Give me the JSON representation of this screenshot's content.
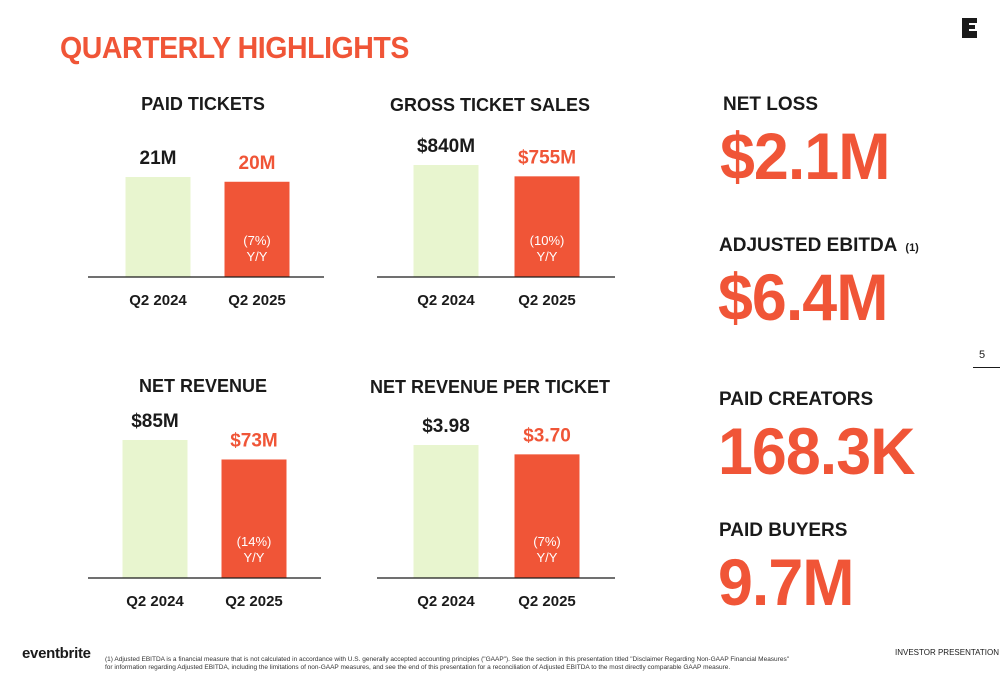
{
  "page_title": "QUARTERLY HIGHLIGHTS",
  "colors": {
    "accent": "#f05537",
    "bar_prior": "#e8f5cf",
    "bar_current": "#f05537",
    "text_dark": "#1a1a1a"
  },
  "chart_data": [
    {
      "type": "bar",
      "title": "PAID TICKETS",
      "categories": [
        "Q2 2024",
        "Q2 2025"
      ],
      "values": [
        21,
        20
      ],
      "value_labels": [
        "21M",
        "20M"
      ],
      "change_label": [
        "(7%)",
        "Y/Y"
      ],
      "unit": "M"
    },
    {
      "type": "bar",
      "title": "GROSS TICKET SALES",
      "categories": [
        "Q2 2024",
        "Q2 2025"
      ],
      "values": [
        840,
        755
      ],
      "value_labels": [
        "$840M",
        "$755M"
      ],
      "change_label": [
        "(10%)",
        "Y/Y"
      ],
      "unit": "$M"
    },
    {
      "type": "bar",
      "title": "NET REVENUE",
      "categories": [
        "Q2 2024",
        "Q2 2025"
      ],
      "values": [
        85,
        73
      ],
      "value_labels": [
        "$85M",
        "$73M"
      ],
      "change_label": [
        "(14%)",
        "Y/Y"
      ],
      "unit": "$M"
    },
    {
      "type": "bar",
      "title": "NET REVENUE PER TICKET",
      "categories": [
        "Q2 2024",
        "Q2 2025"
      ],
      "values": [
        3.98,
        3.7
      ],
      "value_labels": [
        "$3.98",
        "$3.70"
      ],
      "change_label": [
        "(7%)",
        "Y/Y"
      ],
      "unit": "$"
    }
  ],
  "metrics": [
    {
      "label": "NET LOSS",
      "value": "$2.1M",
      "footnote_ref": ""
    },
    {
      "label": "ADJUSTED EBITDA",
      "value": "$6.4M",
      "footnote_ref": "(1)"
    },
    {
      "label": "PAID CREATORS",
      "value": "168.3K",
      "footnote_ref": ""
    },
    {
      "label": "PAID BUYERS",
      "value": "9.7M",
      "footnote_ref": ""
    }
  ],
  "page_number": "5",
  "brand": "eventbrite",
  "footer_right": "INVESTOR PRESENTATION",
  "footnote": "(1) Adjusted EBITDA is a financial measure that is not calculated in accordance with U.S. generally accepted accounting principles (\"GAAP\"). See the section in this presentation titled \"Disclaimer Regarding Non-GAAP Financial Measures\" for information regarding Adjusted EBITDA, including the limitations of non-GAAP measures, and see the end of this presentation for a reconciliation of Adjusted EBITDA to the most directly comparable GAAP measure."
}
